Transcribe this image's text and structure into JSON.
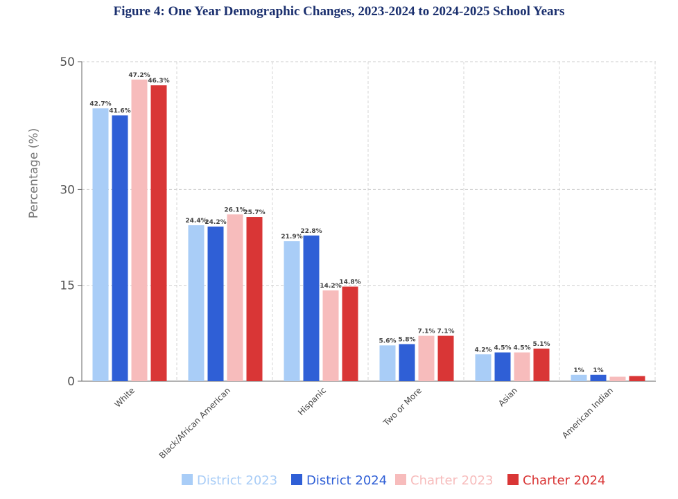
{
  "chart_data": {
    "type": "bar",
    "title": "Figure 4: One Year Demographic Changes, 2023-2024 to 2024-2025 School Years",
    "xlabel": "",
    "ylabel": "Percentage (%)",
    "ylim": [
      0,
      50
    ],
    "yticks": [
      0,
      15,
      30,
      50
    ],
    "grid": true,
    "legend_position": "bottom",
    "categories": [
      "White",
      "Black/African American",
      "Hispanic",
      "Two or More",
      "Asian",
      "American Indian"
    ],
    "series": [
      {
        "name": "District 2023",
        "color": "#a9cdf7",
        "values": [
          42.7,
          24.4,
          21.9,
          5.6,
          4.2,
          1.0
        ],
        "labels": [
          "42.7%",
          "24.4%",
          "21.9%",
          "5.6%",
          "4.2%",
          "1%"
        ]
      },
      {
        "name": "District 2024",
        "color": "#2f5fd6",
        "values": [
          41.6,
          24.2,
          22.8,
          5.8,
          4.5,
          1.0
        ],
        "labels": [
          "41.6%",
          "24.2%",
          "22.8%",
          "5.8%",
          "4.5%",
          "1%"
        ]
      },
      {
        "name": "Charter 2023",
        "color": "#f7bcbc",
        "values": [
          47.2,
          26.1,
          14.2,
          7.1,
          4.5,
          0.7
        ],
        "labels": [
          "47.2%",
          "26.1%",
          "14.2%",
          "7.1%",
          "4.5%",
          ""
        ]
      },
      {
        "name": "Charter 2024",
        "color": "#d93636",
        "values": [
          46.3,
          25.7,
          14.8,
          7.1,
          5.1,
          0.8
        ],
        "labels": [
          "46.3%",
          "25.7%",
          "14.8%",
          "7.1%",
          "5.1%",
          ""
        ]
      }
    ]
  }
}
